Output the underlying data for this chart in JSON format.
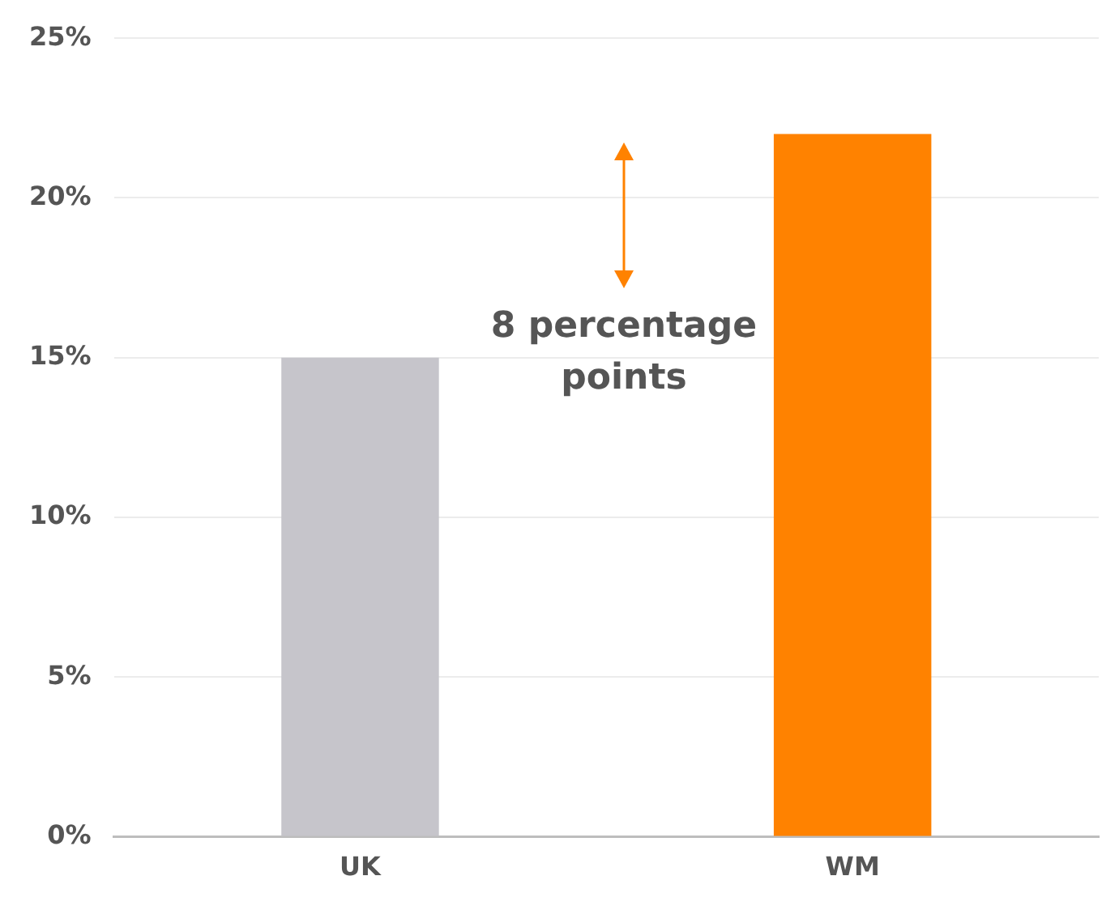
{
  "chart_data": {
    "type": "bar",
    "categories": [
      "UK",
      "WM"
    ],
    "values": [
      15,
      22
    ],
    "colors": [
      "#c6c5cb",
      "#ff8200"
    ],
    "ylim": [
      0,
      25
    ],
    "yticks": [
      {
        "value": 0,
        "label": "0%"
      },
      {
        "value": 5,
        "label": "5%"
      },
      {
        "value": 10,
        "label": "10%"
      },
      {
        "value": 15,
        "label": "15%"
      },
      {
        "value": 20,
        "label": "20%"
      },
      {
        "value": 25,
        "label": "25%"
      }
    ],
    "grid": "y",
    "annotations": [
      "8 percentage points"
    ]
  }
}
